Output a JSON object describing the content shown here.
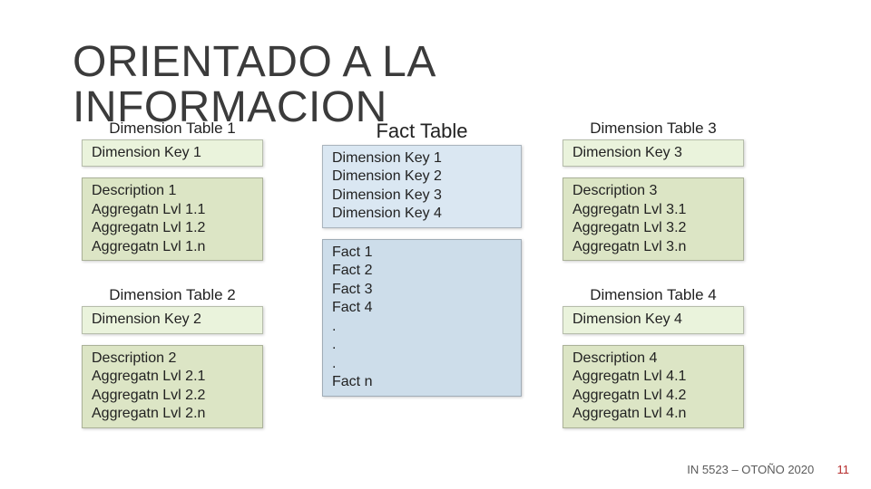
{
  "title_line1": "ORIENTADO A LA",
  "title_line2": "INFORMACION",
  "colors": {
    "key_box_bg": "#eaf3dc",
    "attr_box_bg": "#dce5c5",
    "fact_keys_bg": "#dae7f2",
    "fact_body_bg": "#cdddea",
    "text": "#222222",
    "title": "#3b3b3b",
    "footer": "#5b5b5b",
    "page_no": "#b72e2e"
  },
  "fonts": {
    "title_size_pt": 36,
    "label_size_pt": 13,
    "fact_label_size_pt": 16,
    "body_size_pt": 12
  },
  "dim1": {
    "label": "Dimension Table 1",
    "key": "Dimension Key 1",
    "a0": "Description 1",
    "a1": "Aggregatn Lvl 1.1",
    "a2": "Aggregatn Lvl 1.2",
    "a3": "Aggregatn Lvl 1.n"
  },
  "dim2": {
    "label": "Dimension Table 2",
    "key": "Dimension Key 2",
    "a0": "Description 2",
    "a1": "Aggregatn Lvl 2.1",
    "a2": "Aggregatn Lvl 2.2",
    "a3": "Aggregatn Lvl 2.n"
  },
  "dim3": {
    "label": "Dimension Table 3",
    "key": "Dimension Key 3",
    "a0": "Description 3",
    "a1": "Aggregatn Lvl 3.1",
    "a2": "Aggregatn Lvl 3.2",
    "a3": "Aggregatn Lvl 3.n"
  },
  "dim4": {
    "label": "Dimension Table 4",
    "key": "Dimension Key 4",
    "a0": "Description 4",
    "a1": "Aggregatn Lvl 4.1",
    "a2": "Aggregatn Lvl 4.2",
    "a3": "Aggregatn Lvl 4.n"
  },
  "fact": {
    "label": "Fact Table",
    "k1": "Dimension Key 1",
    "k2": "Dimension Key 2",
    "k3": "Dimension Key 3",
    "k4": "Dimension Key 4",
    "f1": "Fact 1",
    "f2": "Fact 2",
    "f3": "Fact 3",
    "f4": "Fact 4",
    "d1": ".",
    "d2": ".",
    "d3": ".",
    "fn": "Fact n"
  },
  "footer": {
    "course": "IN 5523 – OTOÑO 2020",
    "page": "11"
  }
}
